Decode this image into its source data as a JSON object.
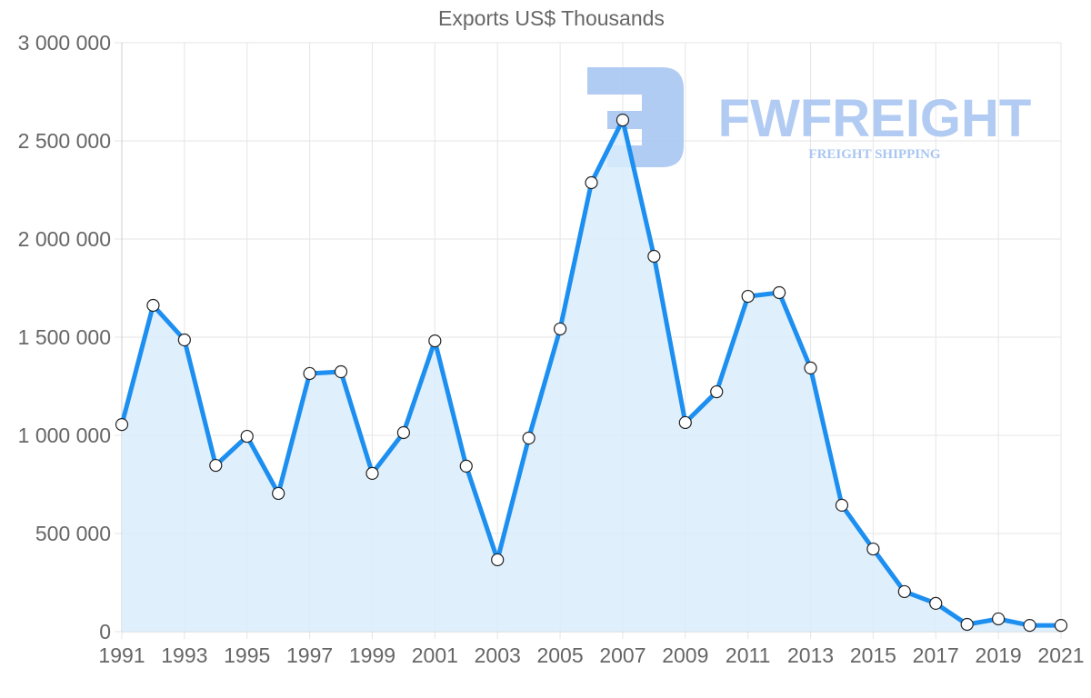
{
  "chart_data": {
    "type": "line",
    "title": "Exports US$ Thousands",
    "xlabel": "",
    "ylabel": "",
    "x": [
      1991,
      1992,
      1993,
      1994,
      1995,
      1996,
      1997,
      1998,
      1999,
      2000,
      2001,
      2002,
      2003,
      2004,
      2005,
      2006,
      2007,
      2008,
      2009,
      2010,
      2011,
      2012,
      2013,
      2014,
      2015,
      2016,
      2017,
      2018,
      2019,
      2020,
      2021
    ],
    "series": [
      {
        "name": "Exports US$ Thousands",
        "values": [
          1055000,
          1662000,
          1486000,
          847000,
          995000,
          704000,
          1315000,
          1324000,
          806000,
          1014000,
          1481000,
          843000,
          366000,
          986000,
          1542000,
          2287000,
          2606000,
          1912000,
          1065000,
          1222000,
          1708000,
          1727000,
          1343000,
          644000,
          421000,
          204000,
          144000,
          37000,
          65000,
          32000,
          32000
        ],
        "color": "#1c8ff0",
        "fill": "#d9ecfc"
      }
    ],
    "ylim": [
      0,
      3000000
    ],
    "xlim": [
      1991,
      2021
    ],
    "y_ticks": [
      0,
      500000,
      1000000,
      1500000,
      2000000,
      2500000,
      3000000
    ],
    "y_tick_labels": [
      "0",
      "500 000",
      "1 000 000",
      "1 500 000",
      "2 000 000",
      "2 500 000",
      "3 000 000"
    ],
    "x_tick_labels": [
      "1991",
      "1993",
      "1995",
      "1997",
      "1999",
      "2001",
      "2003",
      "2005",
      "2007",
      "2009",
      "2011",
      "2013",
      "2015",
      "2017",
      "2019",
      "2021"
    ],
    "grid": true,
    "legend": "none",
    "annotations": []
  },
  "watermark": {
    "brand": "FWFREIGHT",
    "tagline": "FREIGHT SHIPPING",
    "color": "#a9c6f2"
  },
  "colors": {
    "line": "#1c8ff0",
    "area": "#d9ecfc",
    "grid": "#e5e5e5",
    "axis_text": "#666666",
    "point_fill": "#ffffff",
    "point_stroke": "#222222"
  }
}
